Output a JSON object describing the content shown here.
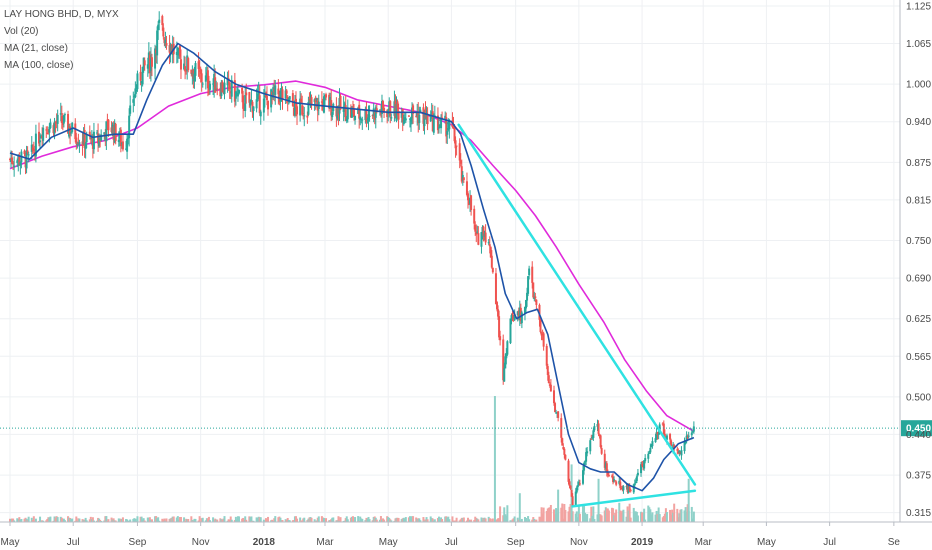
{
  "legend": {
    "symbol": "LAY HONG BHD, D, MYX",
    "volume": "Vol (20)",
    "ma21": "MA (21, close)",
    "ma100": "MA (100, close)"
  },
  "colors": {
    "background": "#ffffff",
    "grid": "#eef0f3",
    "up": "#26a69a",
    "down": "#ef5350",
    "volume_up": "#8fd1c9",
    "volume_down": "#f2a3a1",
    "ma21": "#1e53a8",
    "ma100": "#e02adb",
    "trendline": "#2fe2e2",
    "last_price": "#26a69a",
    "axis_text": "#4a4a4a"
  },
  "chart_data": {
    "type": "candlestick",
    "symbol": "LAY HONG BHD",
    "interval": "D",
    "exchange": "MYX",
    "last_price": 0.45,
    "last_price_label": "0.450",
    "y_range": [
      0.3,
      1.125
    ],
    "y_ticks": [
      "1.125",
      "1.065",
      "1.000",
      "0.940",
      "0.875",
      "0.815",
      "0.750",
      "0.690",
      "0.625",
      "0.565",
      "0.500",
      "0.440",
      "0.375",
      "0.315"
    ],
    "x_range": [
      "2017-05-01",
      "2019-09-05"
    ],
    "x_ticks": [
      {
        "date": "2017-05-01",
        "label": "May"
      },
      {
        "date": "2017-07-01",
        "label": "Jul"
      },
      {
        "date": "2017-09-01",
        "label": "Sep"
      },
      {
        "date": "2017-11-01",
        "label": "Nov"
      },
      {
        "date": "2018-01-01",
        "label": "2018"
      },
      {
        "date": "2018-03-01",
        "label": "Mar"
      },
      {
        "date": "2018-05-01",
        "label": "May"
      },
      {
        "date": "2018-07-01",
        "label": "Jul"
      },
      {
        "date": "2018-09-01",
        "label": "Sep"
      },
      {
        "date": "2018-11-01",
        "label": "Nov"
      },
      {
        "date": "2019-01-01",
        "label": "2019"
      },
      {
        "date": "2019-03-01",
        "label": "Mar"
      },
      {
        "date": "2019-05-01",
        "label": "May"
      },
      {
        "date": "2019-07-01",
        "label": "Jul"
      },
      {
        "date": "2019-09-01",
        "label": "Se"
      }
    ],
    "price_path": [
      [
        "2017-05-01",
        0.88
      ],
      [
        "2017-05-20",
        0.88
      ],
      [
        "2017-06-01",
        0.93
      ],
      [
        "2017-06-20",
        0.94
      ],
      [
        "2017-07-10",
        0.91
      ],
      [
        "2017-07-25",
        0.91
      ],
      [
        "2017-08-05",
        0.935
      ],
      [
        "2017-08-20",
        0.9
      ],
      [
        "2017-08-28",
        0.98
      ],
      [
        "2017-09-05",
        1.02
      ],
      [
        "2017-09-15",
        1.04
      ],
      [
        "2017-09-22",
        1.09
      ],
      [
        "2017-10-01",
        1.07
      ],
      [
        "2017-10-10",
        1.04
      ],
      [
        "2017-10-20",
        1.03
      ],
      [
        "2017-11-01",
        1.01
      ],
      [
        "2017-11-15",
        1.0
      ],
      [
        "2017-12-01",
        0.99
      ],
      [
        "2017-12-12",
        0.97
      ],
      [
        "2018-01-01",
        0.97
      ],
      [
        "2018-01-15",
        0.985
      ],
      [
        "2018-02-01",
        0.96
      ],
      [
        "2018-03-01",
        0.97
      ],
      [
        "2018-04-01",
        0.95
      ],
      [
        "2018-05-01",
        0.96
      ],
      [
        "2018-06-01",
        0.95
      ],
      [
        "2018-06-20",
        0.935
      ],
      [
        "2018-07-01",
        0.93
      ],
      [
        "2018-07-06",
        0.9
      ],
      [
        "2018-07-12",
        0.84
      ],
      [
        "2018-07-18",
        0.82
      ],
      [
        "2018-07-25",
        0.75
      ],
      [
        "2018-08-01",
        0.77
      ],
      [
        "2018-08-08",
        0.73
      ],
      [
        "2018-08-14",
        0.64
      ],
      [
        "2018-08-20",
        0.53
      ],
      [
        "2018-08-26",
        0.62
      ],
      [
        "2018-09-03",
        0.64
      ],
      [
        "2018-09-08",
        0.62
      ],
      [
        "2018-09-14",
        0.7
      ],
      [
        "2018-09-20",
        0.65
      ],
      [
        "2018-09-28",
        0.58
      ],
      [
        "2018-10-05",
        0.51
      ],
      [
        "2018-10-12",
        0.46
      ],
      [
        "2018-10-20",
        0.39
      ],
      [
        "2018-10-26",
        0.33
      ],
      [
        "2018-11-03",
        0.37
      ],
      [
        "2018-11-10",
        0.42
      ],
      [
        "2018-11-18",
        0.46
      ],
      [
        "2018-11-24",
        0.4
      ],
      [
        "2018-12-01",
        0.37
      ],
      [
        "2018-12-10",
        0.36
      ],
      [
        "2018-12-20",
        0.35
      ],
      [
        "2019-01-01",
        0.39
      ],
      [
        "2019-01-10",
        0.42
      ],
      [
        "2019-01-20",
        0.455
      ],
      [
        "2019-01-28",
        0.425
      ],
      [
        "2019-02-05",
        0.41
      ],
      [
        "2019-02-12",
        0.43
      ],
      [
        "2019-02-20",
        0.45
      ]
    ],
    "ma21_path": [
      [
        "2017-05-01",
        0.89
      ],
      [
        "2017-05-20",
        0.88
      ],
      [
        "2017-06-10",
        0.915
      ],
      [
        "2017-07-01",
        0.93
      ],
      [
        "2017-07-20",
        0.915
      ],
      [
        "2017-08-10",
        0.92
      ],
      [
        "2017-08-28",
        0.92
      ],
      [
        "2017-09-10",
        0.975
      ],
      [
        "2017-09-25",
        1.03
      ],
      [
        "2017-10-10",
        1.065
      ],
      [
        "2017-10-25",
        1.05
      ],
      [
        "2017-11-15",
        1.02
      ],
      [
        "2017-12-05",
        1.0
      ],
      [
        "2018-01-01",
        0.985
      ],
      [
        "2018-02-01",
        0.97
      ],
      [
        "2018-03-01",
        0.965
      ],
      [
        "2018-04-01",
        0.96
      ],
      [
        "2018-05-01",
        0.955
      ],
      [
        "2018-06-01",
        0.955
      ],
      [
        "2018-07-01",
        0.94
      ],
      [
        "2018-07-10",
        0.92
      ],
      [
        "2018-07-20",
        0.87
      ],
      [
        "2018-08-01",
        0.8
      ],
      [
        "2018-08-12",
        0.74
      ],
      [
        "2018-08-22",
        0.665
      ],
      [
        "2018-09-02",
        0.625
      ],
      [
        "2018-09-12",
        0.635
      ],
      [
        "2018-09-22",
        0.64
      ],
      [
        "2018-10-02",
        0.6
      ],
      [
        "2018-10-12",
        0.52
      ],
      [
        "2018-10-22",
        0.44
      ],
      [
        "2018-11-01",
        0.395
      ],
      [
        "2018-11-12",
        0.385
      ],
      [
        "2018-11-22",
        0.38
      ],
      [
        "2018-12-05",
        0.38
      ],
      [
        "2018-12-18",
        0.36
      ],
      [
        "2019-01-01",
        0.35
      ],
      [
        "2019-01-12",
        0.37
      ],
      [
        "2019-01-22",
        0.4
      ],
      [
        "2019-02-05",
        0.425
      ],
      [
        "2019-02-20",
        0.435
      ]
    ],
    "ma100_path": [
      [
        "2017-05-01",
        0.865
      ],
      [
        "2017-06-01",
        0.885
      ],
      [
        "2017-07-01",
        0.9
      ],
      [
        "2017-08-01",
        0.91
      ],
      [
        "2017-09-01",
        0.93
      ],
      [
        "2017-10-01",
        0.965
      ],
      [
        "2017-11-01",
        0.985
      ],
      [
        "2017-12-01",
        0.995
      ],
      [
        "2018-01-01",
        0.999
      ],
      [
        "2018-02-01",
        1.005
      ],
      [
        "2018-03-01",
        0.995
      ],
      [
        "2018-04-01",
        0.975
      ],
      [
        "2018-05-01",
        0.965
      ],
      [
        "2018-06-01",
        0.955
      ],
      [
        "2018-07-01",
        0.935
      ],
      [
        "2018-07-20",
        0.91
      ],
      [
        "2018-08-10",
        0.87
      ],
      [
        "2018-09-01",
        0.83
      ],
      [
        "2018-09-20",
        0.79
      ],
      [
        "2018-10-10",
        0.74
      ],
      [
        "2018-11-01",
        0.68
      ],
      [
        "2018-11-25",
        0.62
      ],
      [
        "2018-12-15",
        0.56
      ],
      [
        "2019-01-05",
        0.51
      ],
      [
        "2019-01-25",
        0.47
      ],
      [
        "2019-02-20",
        0.445
      ]
    ],
    "volume_spikes": [
      [
        "2018-08-12",
        0.35
      ],
      [
        "2018-09-05",
        0.08
      ],
      [
        "2018-10-12",
        0.09
      ],
      [
        "2018-10-25",
        0.16
      ],
      [
        "2018-11-20",
        0.12
      ],
      [
        "2019-02-15",
        0.12
      ]
    ],
    "trendlines": [
      {
        "from": [
          "2018-07-08",
          0.935
        ],
        "to": [
          "2019-02-21",
          0.36
        ]
      },
      {
        "from": [
          "2018-10-26",
          0.325
        ],
        "to": [
          "2019-02-21",
          0.35
        ]
      }
    ]
  }
}
